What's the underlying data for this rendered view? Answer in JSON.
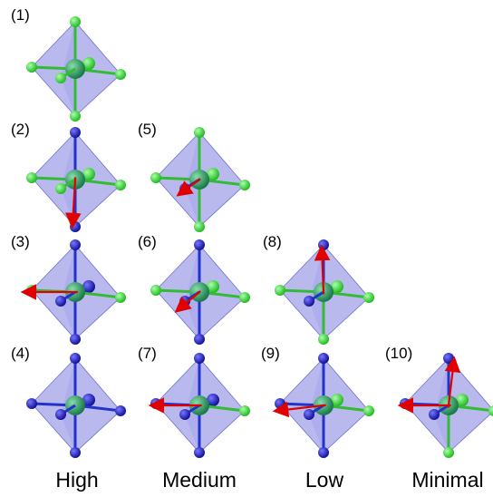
{
  "panels": [
    {
      "label": "(1)"
    },
    {
      "label": "(2)"
    },
    {
      "label": "(3)"
    },
    {
      "label": "(4)"
    },
    {
      "label": "(5)"
    },
    {
      "label": "(6)"
    },
    {
      "label": "(7)"
    },
    {
      "label": "(8)"
    },
    {
      "label": "(9)"
    },
    {
      "label": "(10)"
    }
  ],
  "columns": [
    "High",
    "Medium",
    "Low",
    "Minimal"
  ]
}
